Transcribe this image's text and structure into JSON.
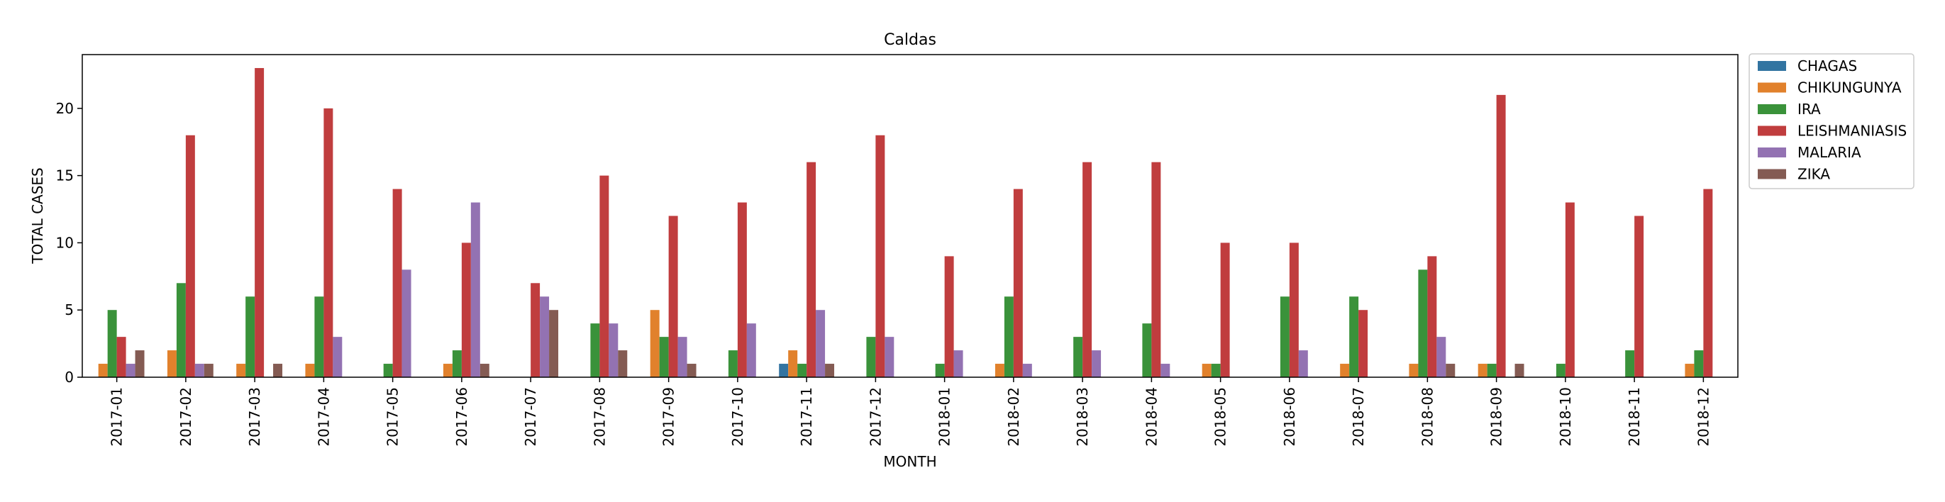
{
  "chart_data": {
    "type": "bar",
    "title": "Caldas",
    "xlabel": "MONTH",
    "ylabel": "TOTAL CASES",
    "ylim": [
      0,
      24
    ],
    "yticks": [
      0,
      5,
      10,
      15,
      20
    ],
    "grid": false,
    "legend_position": "outside-top-right",
    "categories": [
      "2017-01",
      "2017-02",
      "2017-03",
      "2017-04",
      "2017-05",
      "2017-06",
      "2017-07",
      "2017-08",
      "2017-09",
      "2017-10",
      "2017-11",
      "2017-12",
      "2018-01",
      "2018-02",
      "2018-03",
      "2018-04",
      "2018-05",
      "2018-06",
      "2018-07",
      "2018-08",
      "2018-09",
      "2018-10",
      "2018-11",
      "2018-12"
    ],
    "series": [
      {
        "name": "CHAGAS",
        "color": "#3274a1",
        "values": [
          0,
          0,
          0,
          0,
          0,
          0,
          0,
          0,
          0,
          0,
          1,
          0,
          0,
          0,
          0,
          0,
          0,
          0,
          0,
          0,
          0,
          0,
          0,
          0
        ]
      },
      {
        "name": "CHIKUNGUNYA",
        "color": "#e1812c",
        "values": [
          1,
          2,
          1,
          1,
          0,
          1,
          0,
          0,
          5,
          0,
          2,
          0,
          0,
          1,
          0,
          0,
          1,
          0,
          1,
          1,
          1,
          0,
          0,
          1
        ]
      },
      {
        "name": "IRA",
        "color": "#3a923a",
        "values": [
          5,
          7,
          6,
          6,
          1,
          2,
          0,
          4,
          3,
          2,
          1,
          3,
          1,
          6,
          3,
          4,
          1,
          6,
          6,
          8,
          1,
          1,
          2,
          2
        ]
      },
      {
        "name": "LEISHMANIASIS",
        "color": "#c03d3e",
        "values": [
          3,
          18,
          23,
          20,
          14,
          10,
          7,
          15,
          12,
          13,
          16,
          18,
          9,
          14,
          16,
          16,
          10,
          10,
          5,
          9,
          21,
          13,
          12,
          14
        ]
      },
      {
        "name": "MALARIA",
        "color": "#9372b2",
        "values": [
          1,
          1,
          0,
          3,
          8,
          13,
          6,
          4,
          3,
          4,
          5,
          3,
          2,
          1,
          2,
          1,
          0,
          2,
          0,
          3,
          0,
          0,
          0,
          0
        ]
      },
      {
        "name": "ZIKA",
        "color": "#845b53",
        "values": [
          2,
          1,
          1,
          0,
          0,
          1,
          5,
          2,
          1,
          0,
          1,
          0,
          0,
          0,
          0,
          0,
          0,
          0,
          0,
          1,
          1,
          0,
          0,
          0
        ]
      }
    ]
  }
}
